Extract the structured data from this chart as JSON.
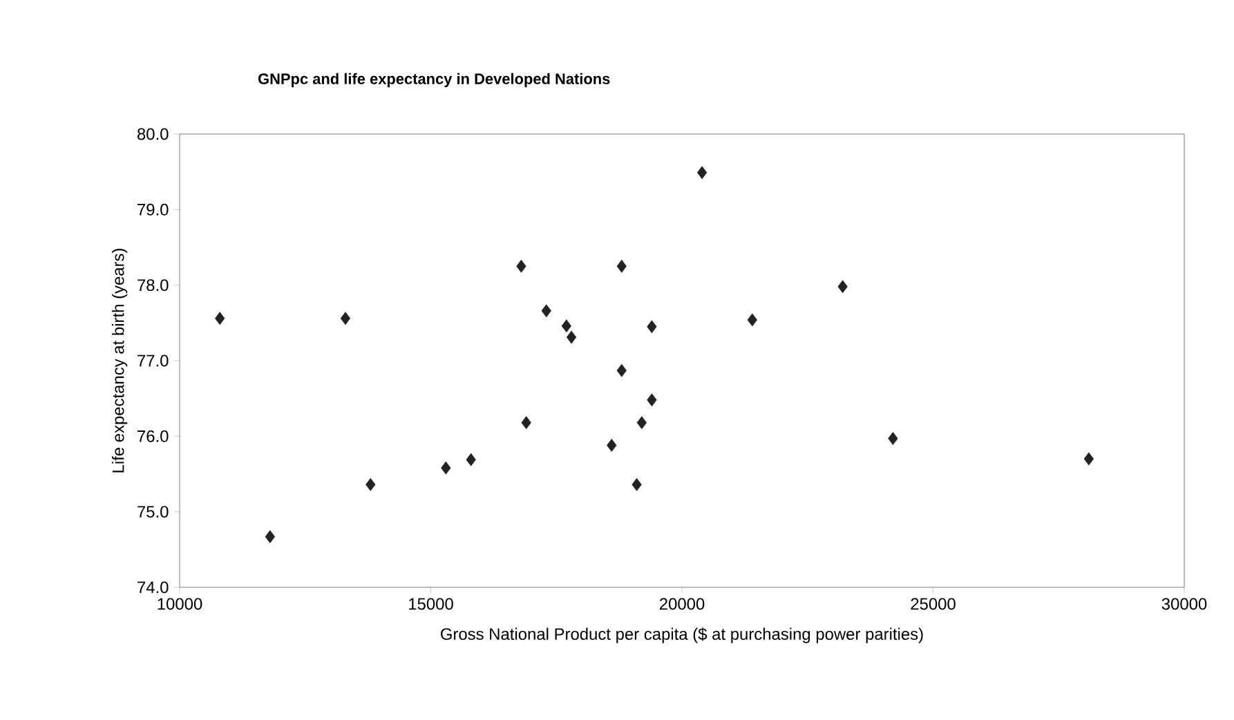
{
  "chart_data": {
    "type": "scatter",
    "title": "GNPpc and life expectancy in Developed Nations",
    "xlabel": "Gross National Product per capita ($ at purchasing power parities)",
    "ylabel": "Life expectancy at birth (years)",
    "x": [
      10800,
      11800,
      13300,
      13800,
      15300,
      15800,
      16800,
      16900,
      17300,
      17700,
      17800,
      18600,
      18800,
      18800,
      19100,
      19200,
      19400,
      19400,
      20400,
      21400,
      23200,
      24200,
      28100
    ],
    "values": [
      77.56,
      74.67,
      77.56,
      75.36,
      75.58,
      75.69,
      78.25,
      76.18,
      77.66,
      77.46,
      77.31,
      75.88,
      78.25,
      76.87,
      75.36,
      76.18,
      77.45,
      76.48,
      79.49,
      77.54,
      77.98,
      75.97,
      75.7
    ],
    "color": "#222222",
    "marker": "diamond",
    "grid": false,
    "xlim": [
      10000,
      30000
    ],
    "xticks": [
      10000,
      15000,
      20000,
      25000,
      30000
    ],
    "ylim": [
      74,
      80
    ],
    "yticks": [
      {
        "value": 74,
        "label": "74.0"
      },
      {
        "value": 75,
        "label": "75.0"
      },
      {
        "value": 76,
        "label": "76.0"
      },
      {
        "value": 77,
        "label": "77.0"
      },
      {
        "value": 78,
        "label": "78.0"
      },
      {
        "value": 79,
        "label": "79.0"
      },
      {
        "value": 80,
        "label": "80.0"
      }
    ]
  }
}
